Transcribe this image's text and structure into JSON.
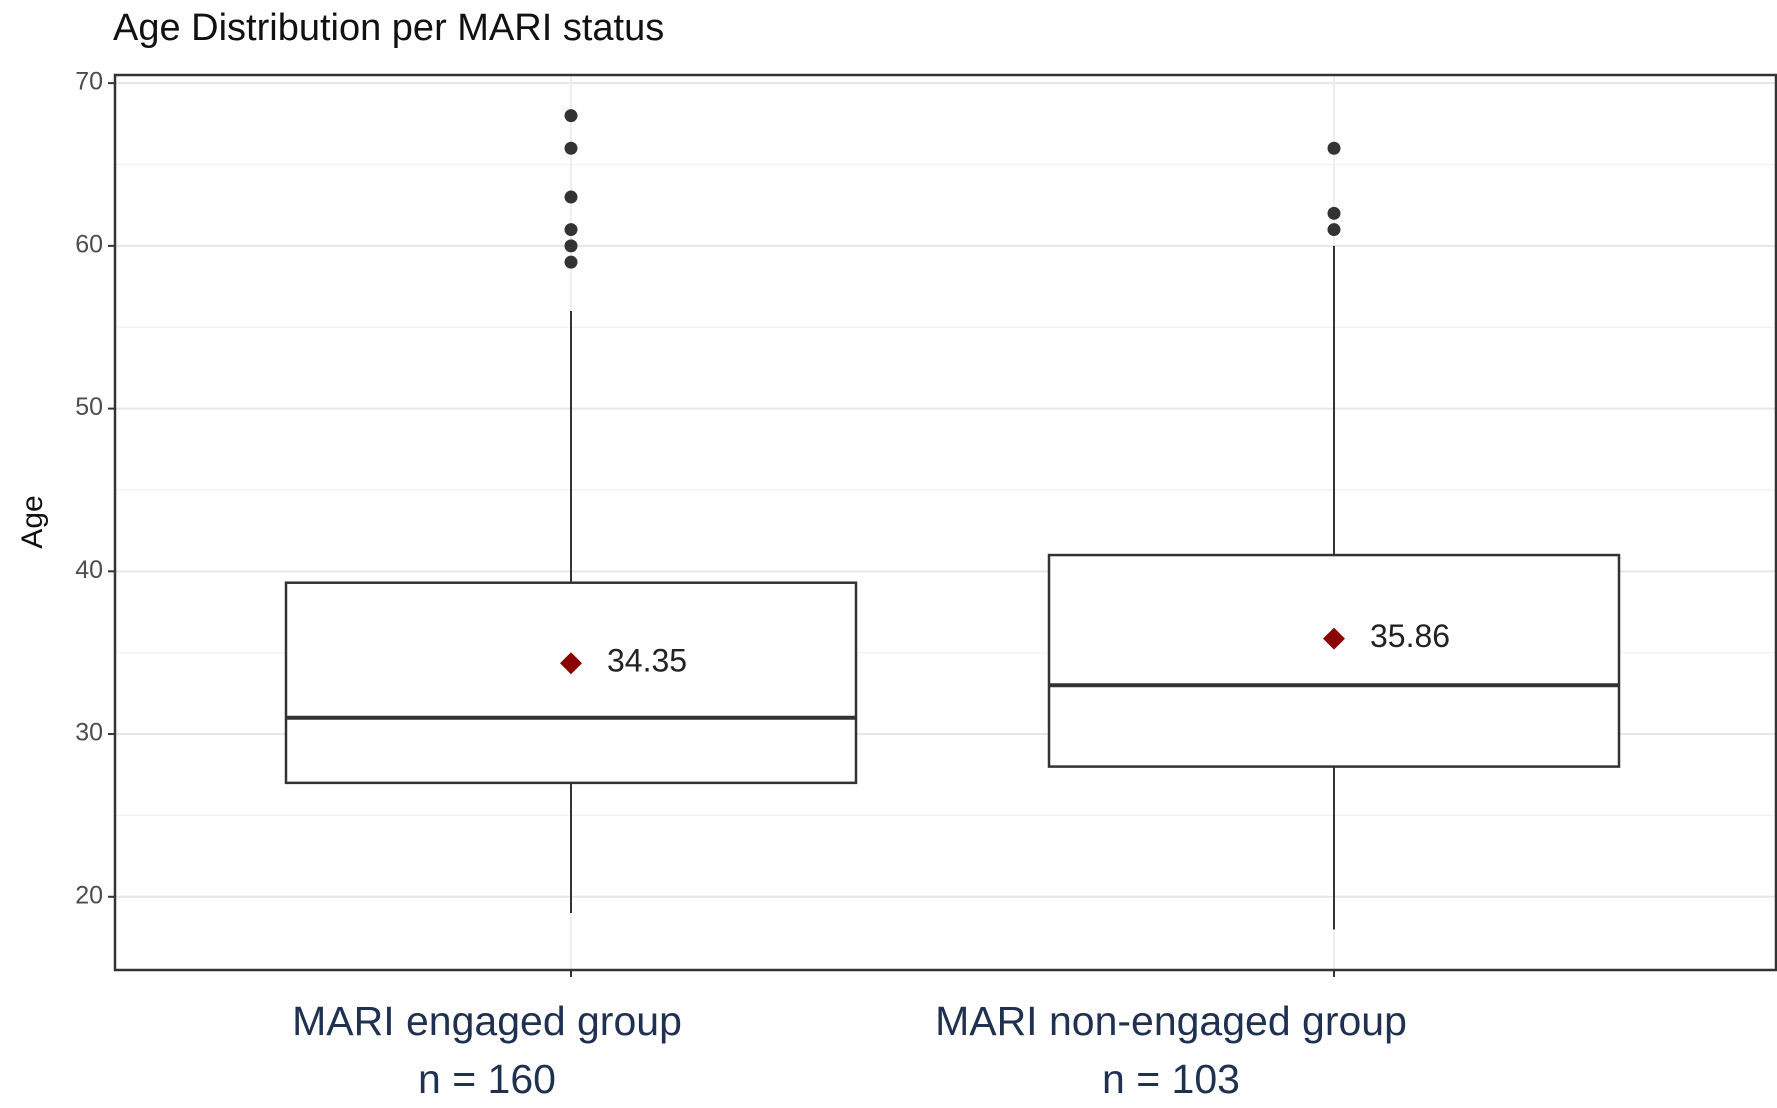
{
  "chart_data": {
    "type": "box",
    "title": "Age Distribution per MARI status",
    "y_label": "Age",
    "categories": [
      "MARI engaged group",
      "MARI non-engaged group"
    ],
    "category_notes": [
      "n = 160",
      "n = 103"
    ],
    "boxes": [
      {
        "whislo": 19,
        "q1": 27,
        "med": 31,
        "q3": 39.3,
        "whishi": 56,
        "mean": 34.35,
        "outliers": [
          59,
          60,
          61,
          63,
          66,
          68
        ]
      },
      {
        "whislo": 18,
        "q1": 28,
        "med": 33,
        "q3": 41,
        "whishi": 60,
        "mean": 35.86,
        "outliers": [
          61,
          62,
          66
        ]
      }
    ],
    "box_color": "#333333",
    "mean_color": "#8b0000",
    "ylim": [
      15.5,
      70.5
    ],
    "yticks": [
      20,
      30,
      40,
      50,
      60,
      70
    ],
    "grid": true
  }
}
